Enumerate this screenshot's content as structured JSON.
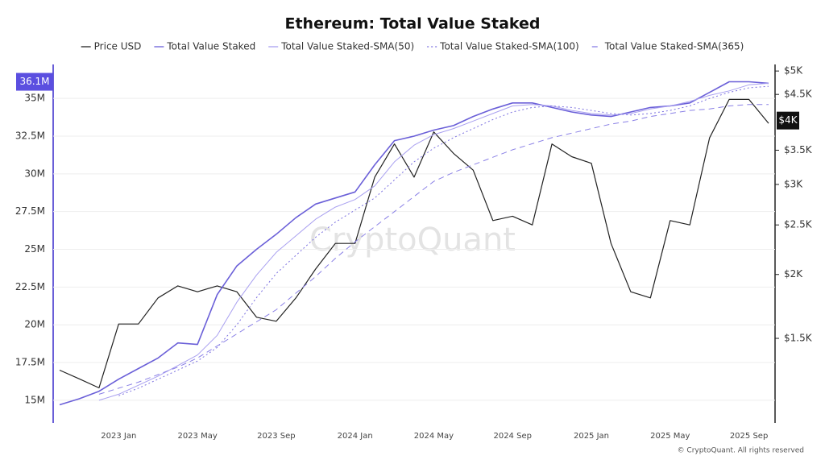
{
  "chart_data": {
    "type": "line",
    "title": "Ethereum: Total Value Staked",
    "watermark": "CryptoQuant",
    "footer": "© CryptoQuant. All rights reserved",
    "categories": [
      null,
      null,
      null,
      "2023 Jan",
      null,
      null,
      null,
      "2023 May",
      null,
      null,
      null,
      "2023 Sep",
      null,
      null,
      null,
      "2024 Jan",
      null,
      null,
      null,
      "2024 May",
      null,
      null,
      null,
      "2024 Sep",
      null,
      null,
      null,
      "2025 Jan",
      null,
      null,
      null,
      "2025 May",
      null,
      null,
      null,
      "2025 Sep",
      null
    ],
    "series": [
      {
        "name": "Price USD",
        "color": "#222222",
        "line_style": "solid",
        "axis": "y2",
        "values": [
          1300,
          1250,
          1200,
          1600,
          1600,
          1800,
          1900,
          1850,
          1900,
          1850,
          1650,
          1620,
          1800,
          2050,
          2300,
          2300,
          3100,
          3600,
          3100,
          3800,
          3450,
          3200,
          2550,
          2600,
          2500,
          3600,
          3400,
          3300,
          2300,
          1850,
          1800,
          2550,
          2500,
          3700,
          4400,
          4400,
          3950
        ]
      },
      {
        "name": "Total Value Staked",
        "color": "#6a5fd8",
        "line_style": "solid",
        "values": [
          14700000,
          15100000,
          15600000,
          16400000,
          17100000,
          17800000,
          18800000,
          18700000,
          22000000,
          23900000,
          25000000,
          26000000,
          27100000,
          28000000,
          28400000,
          28800000,
          30600000,
          32200000,
          32500000,
          32900000,
          33200000,
          33800000,
          34300000,
          34700000,
          34700000,
          34400000,
          34100000,
          33900000,
          33800000,
          34100000,
          34400000,
          34500000,
          34700000,
          35400000,
          36100000,
          36100000,
          36000000
        ]
      },
      {
        "name": "Total Value Staked-SMA(50)",
        "color": "#a9a0f0",
        "line_style": "solid",
        "values": [
          null,
          null,
          15000000,
          15400000,
          16000000,
          16600000,
          17300000,
          18000000,
          19300000,
          21500000,
          23300000,
          24800000,
          25900000,
          27000000,
          27800000,
          28300000,
          29200000,
          30800000,
          31900000,
          32600000,
          33000000,
          33500000,
          34000000,
          34500000,
          34600000,
          34500000,
          34200000,
          34000000,
          33900000,
          34000000,
          34300000,
          34500000,
          34800000,
          35200000,
          35500000,
          35900000,
          36000000
        ]
      },
      {
        "name": "Total Value Staked-SMA(100)",
        "color": "#7b70e0",
        "line_style": "dotted",
        "values": [
          null,
          null,
          null,
          15300000,
          15800000,
          16400000,
          17000000,
          17600000,
          18500000,
          20000000,
          21800000,
          23400000,
          24600000,
          25800000,
          26800000,
          27600000,
          28400000,
          29600000,
          30800000,
          31700000,
          32400000,
          33000000,
          33600000,
          34100000,
          34400000,
          34500000,
          34400000,
          34200000,
          34000000,
          33900000,
          34000000,
          34200000,
          34500000,
          35000000,
          35400000,
          35700000,
          35800000
        ]
      },
      {
        "name": "Total Value Staked-SMA(365)",
        "color": "#8a80e6",
        "line_style": "dashed",
        "values": [
          null,
          null,
          15400000,
          15800000,
          16200000,
          16700000,
          17200000,
          17800000,
          18600000,
          19400000,
          20200000,
          21000000,
          22100000,
          23200000,
          24400000,
          25500000,
          26500000,
          27500000,
          28500000,
          29500000,
          30100000,
          30600000,
          31100000,
          31600000,
          32000000,
          32400000,
          32700000,
          33000000,
          33300000,
          33500000,
          33800000,
          34000000,
          34200000,
          34300000,
          34500000,
          34600000,
          34600000
        ]
      }
    ],
    "ylim": [
      13500000,
      37250000
    ],
    "yticks": [
      {
        "value": 15000000,
        "label": "15M"
      },
      {
        "value": 17500000,
        "label": "17.5M"
      },
      {
        "value": 20000000,
        "label": "20M"
      },
      {
        "value": 22500000,
        "label": "22.5M"
      },
      {
        "value": 25000000,
        "label": "25M"
      },
      {
        "value": 27500000,
        "label": "27.5M"
      },
      {
        "value": 30000000,
        "label": "30M"
      },
      {
        "value": 32500000,
        "label": "32.5M"
      },
      {
        "value": 35000000,
        "label": "35M"
      }
    ],
    "y_current": {
      "value": 36100000,
      "label": "36.1M"
    },
    "y2lim": [
      1025,
      5150
    ],
    "y2log": true,
    "y2ticks": [
      {
        "value": 1500,
        "label": "$1.5K"
      },
      {
        "value": 2000,
        "label": "$2K"
      },
      {
        "value": 2500,
        "label": "$2.5K"
      },
      {
        "value": 3000,
        "label": "$3K"
      },
      {
        "value": 3500,
        "label": "$3.5K"
      },
      {
        "value": 4500,
        "label": "$4.5K"
      },
      {
        "value": 5000,
        "label": "$5K"
      }
    ],
    "y2_current": {
      "value": 4000,
      "label": "$4K"
    },
    "grid": true
  }
}
